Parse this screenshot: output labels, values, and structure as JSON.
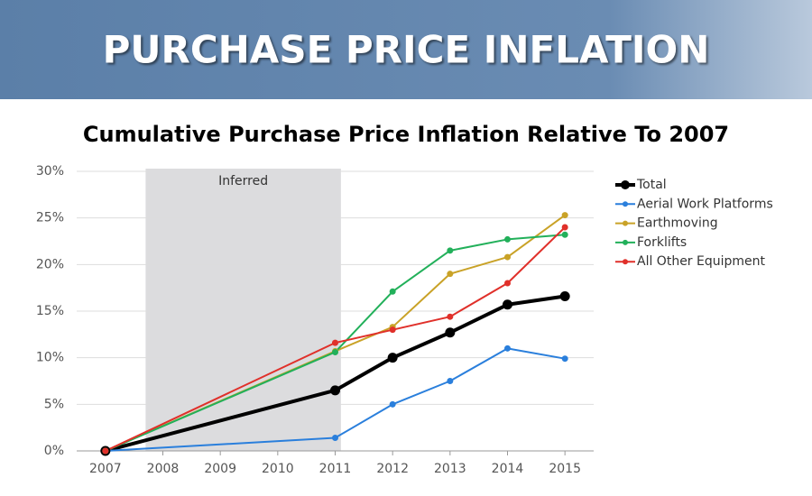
{
  "header": {
    "title": "PURCHASE PRICE INFLATION"
  },
  "chart_data": {
    "type": "line",
    "title": "Cumulative Purchase Price Inflation Relative To 2007",
    "x": [
      2007,
      2011,
      2012,
      2013,
      2014,
      2015
    ],
    "series": [
      {
        "name": "Total",
        "color": "#000000",
        "line_width": 4,
        "values": [
          0,
          6.5,
          10.0,
          12.7,
          15.7,
          16.6
        ]
      },
      {
        "name": "Aerial Work Platforms",
        "color": "#2a7fdc",
        "line_width": 2,
        "values": [
          0,
          1.4,
          5.0,
          7.5,
          11.0,
          9.9
        ]
      },
      {
        "name": "Earthmoving",
        "color": "#c9a227",
        "line_width": 2,
        "values": [
          0,
          10.7,
          13.3,
          19.0,
          20.8,
          25.3
        ]
      },
      {
        "name": "Forklifts",
        "color": "#22b05a",
        "line_width": 2,
        "values": [
          0,
          10.6,
          17.1,
          21.5,
          22.7,
          23.2
        ]
      },
      {
        "name": "All Other Equipment",
        "color": "#e0302a",
        "line_width": 2,
        "values": [
          0,
          11.6,
          13.0,
          14.4,
          18.0,
          24.0
        ]
      }
    ],
    "shaded": {
      "label": "Inferred",
      "xrange": [
        2007.7,
        2011.1
      ]
    },
    "xlim": [
      2006.5,
      2015.5
    ],
    "xticks": [
      2007,
      2008,
      2009,
      2010,
      2011,
      2012,
      2013,
      2014,
      2015
    ],
    "ylim": [
      0,
      30
    ],
    "yticks": [
      {
        "value": 0,
        "label": "0%"
      },
      {
        "value": 5,
        "label": "5%"
      },
      {
        "value": 10,
        "label": "10%"
      },
      {
        "value": 15,
        "label": "15%"
      },
      {
        "value": 20,
        "label": "20%"
      },
      {
        "value": 25,
        "label": "25%"
      },
      {
        "value": 30,
        "label": "30%"
      }
    ],
    "grid": true,
    "legend": "right"
  }
}
